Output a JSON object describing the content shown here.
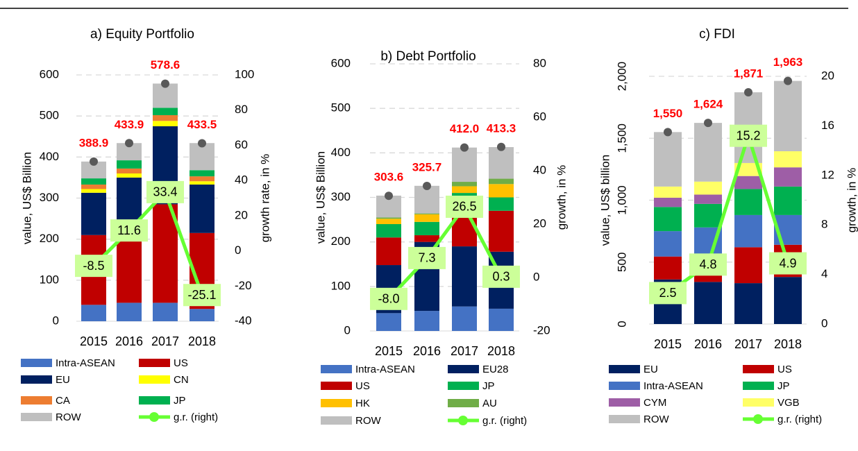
{
  "chart_data": [
    {
      "type": "stacked-bar-line",
      "title": "a) Equity Portfolio",
      "y_label": "value, US$ Billion",
      "y2_label": "growth rate, in %",
      "categories": [
        "2015",
        "2016",
        "2017",
        "2018"
      ],
      "series": [
        {
          "name": "Intra-ASEAN",
          "color": "#4472c4",
          "values": [
            40,
            45,
            45,
            30
          ]
        },
        {
          "name": "US",
          "color": "#c00000",
          "values": [
            170,
            170,
            240,
            185
          ]
        },
        {
          "name": "EU",
          "color": "#002060",
          "values": [
            103,
            135,
            190,
            118
          ]
        },
        {
          "name": "CN",
          "color": "#ffff00",
          "values": [
            9,
            10,
            13,
            8
          ]
        },
        {
          "name": "CA",
          "color": "#ed7d31",
          "values": [
            11,
            12,
            14,
            12
          ]
        },
        {
          "name": "JP",
          "color": "#00b050",
          "values": [
            15,
            20,
            18,
            15
          ]
        },
        {
          "name": "ROW",
          "color": "#bfbfbf",
          "values": [
            41,
            42,
            59,
            66
          ]
        },
        {
          "name": "g.r. (right)",
          "color": "#66ff33",
          "axis": "y2",
          "values": [
            -8.5,
            11.6,
            33.4,
            -25.1
          ],
          "value_labels": [
            "-8.5",
            "11.6",
            "33.4",
            "-25.1"
          ]
        }
      ],
      "totals": {
        "values": [
          388.9,
          433.9,
          578.6,
          433.5
        ],
        "value_labels": [
          "388.9",
          "433.9",
          "578.6",
          "433.5"
        ]
      },
      "ylim": [
        0,
        600
      ],
      "yticks": [
        0,
        100,
        200,
        300,
        400,
        500,
        600
      ],
      "y2lim": [
        -40,
        100
      ],
      "y2ticks": [
        -40,
        -20,
        0,
        20,
        40,
        60,
        80,
        100
      ],
      "grid": true
    },
    {
      "type": "stacked-bar-line",
      "title": "b) Debt Portfolio",
      "y_label": "value, US$ Billion",
      "y2_label": "growth, in %",
      "categories": [
        "2015",
        "2016",
        "2017",
        "2018"
      ],
      "series": [
        {
          "name": "Intra-ASEAN",
          "color": "#4472c4",
          "values": [
            40,
            45,
            55,
            50
          ]
        },
        {
          "name": "EU28",
          "color": "#002060",
          "values": [
            108,
            155,
            135,
            128
          ]
        },
        {
          "name": "US",
          "color": "#c00000",
          "values": [
            62,
            15,
            65,
            92
          ]
        },
        {
          "name": "JP",
          "color": "#00b050",
          "values": [
            30,
            30,
            55,
            30
          ]
        },
        {
          "name": "HK",
          "color": "#ffc000",
          "values": [
            12,
            17,
            15,
            30
          ]
        },
        {
          "name": "AU",
          "color": "#70ad47",
          "values": [
            3,
            2,
            10,
            12
          ]
        },
        {
          "name": "ROW",
          "color": "#bfbfbf",
          "values": [
            49,
            62,
            77,
            71
          ]
        },
        {
          "name": "g.r. (right)",
          "color": "#66ff33",
          "axis": "y2",
          "values": [
            -8.0,
            7.3,
            26.5,
            0.3
          ],
          "value_labels": [
            "-8.0",
            "7.3",
            "26.5",
            "0.3"
          ]
        }
      ],
      "totals": {
        "values": [
          303.6,
          325.7,
          412.0,
          413.3
        ],
        "value_labels": [
          "303.6",
          "325.7",
          "412.0",
          "413.3"
        ]
      },
      "ylim": [
        0,
        600
      ],
      "yticks": [
        0,
        100,
        200,
        300,
        400,
        500,
        600
      ],
      "y2lim": [
        -20,
        80
      ],
      "y2ticks": [
        -20,
        0,
        20,
        40,
        60,
        80
      ],
      "grid": true
    },
    {
      "type": "stacked-bar-line",
      "title": "c) FDI",
      "y_label": "value, US$ billion",
      "y2_label": "growth, in %",
      "categories": [
        "2015",
        "2016",
        "2017",
        "2018"
      ],
      "series": [
        {
          "name": "EU",
          "color": "#002060",
          "values": [
            360,
            340,
            330,
            380
          ]
        },
        {
          "name": "US",
          "color": "#c00000",
          "values": [
            185,
            130,
            290,
            260
          ]
        },
        {
          "name": "Intra-ASEAN",
          "color": "#4472c4",
          "values": [
            205,
            310,
            260,
            240
          ]
        },
        {
          "name": "JP",
          "color": "#00b050",
          "values": [
            195,
            190,
            210,
            230
          ]
        },
        {
          "name": "CYM",
          "color": "#9e5ea6",
          "values": [
            75,
            75,
            105,
            155
          ]
        },
        {
          "name": "VGB",
          "color": "#ffff66",
          "values": [
            90,
            105,
            105,
            130
          ]
        },
        {
          "name": "ROW",
          "color": "#bfbfbf",
          "values": [
            440,
            474,
            571,
            568
          ]
        },
        {
          "name": "g.r. (right)",
          "color": "#66ff33",
          "axis": "y2",
          "values": [
            2.5,
            4.8,
            15.2,
            4.9
          ],
          "value_labels": [
            "2.5",
            "4.8",
            "15.2",
            "4.9"
          ]
        }
      ],
      "totals": {
        "values": [
          1550,
          1624,
          1871,
          1963
        ],
        "value_labels": [
          "1,550",
          "1,624",
          "1,871",
          "1,963"
        ]
      },
      "ylim": [
        0,
        2000
      ],
      "yticks": [
        0,
        500,
        {
          "value": 1000,
          "label": "1,000"
        },
        {
          "value": 1500,
          "label": "1,500"
        },
        {
          "value": 2000,
          "label": "2,000"
        }
      ],
      "y2lim": [
        0,
        20
      ],
      "y2ticks": [
        0,
        4,
        8,
        12,
        16,
        20
      ],
      "grid": true
    }
  ]
}
